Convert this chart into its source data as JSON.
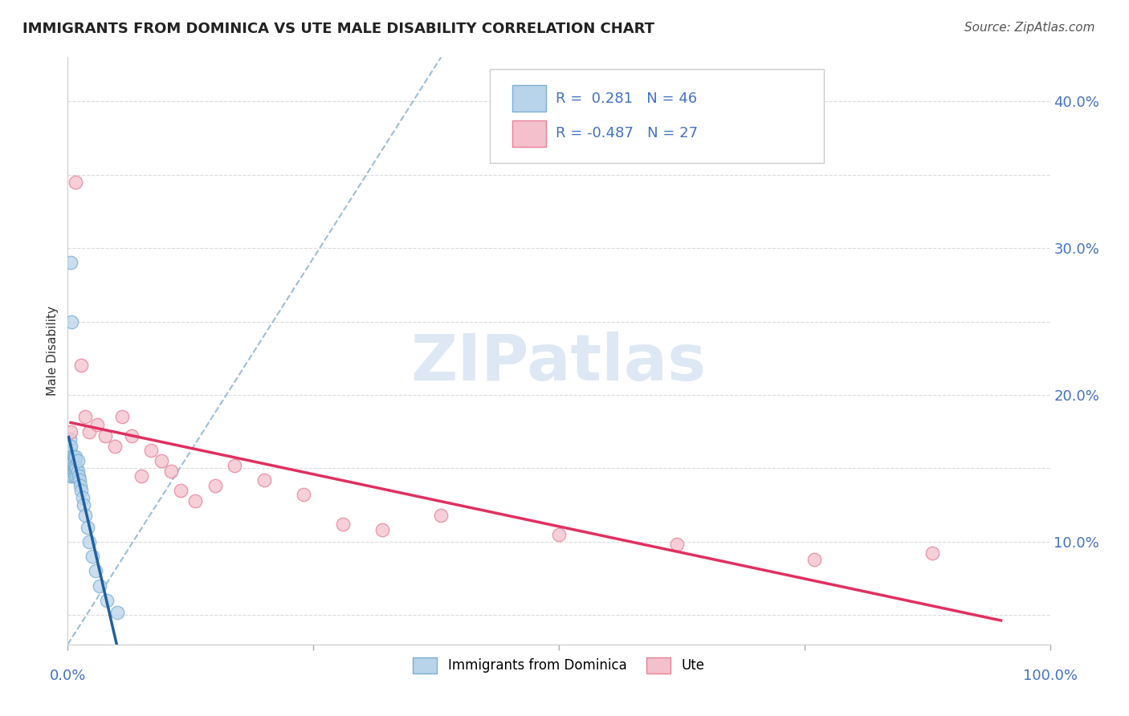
{
  "title": "IMMIGRANTS FROM DOMINICA VS UTE MALE DISABILITY CORRELATION CHART",
  "source": "Source: ZipAtlas.com",
  "ylabel": "Male Disability",
  "xmin": 0.0,
  "xmax": 1.0,
  "ymin": 0.03,
  "ymax": 0.43,
  "yticks": [
    0.1,
    0.2,
    0.3,
    0.4
  ],
  "ytick_labels": [
    "10.0%",
    "20.0%",
    "30.0%",
    "40.0%"
  ],
  "r_blue": "0.281",
  "n_blue": "46",
  "r_pink": "-0.487",
  "n_pink": "27",
  "blue_fill": "#b8d4ea",
  "blue_edge": "#7bafd4",
  "pink_fill": "#f4c0cc",
  "pink_edge": "#e88098",
  "trend_blue": "#2060a0",
  "trend_pink": "#e03060",
  "ref_line": "#90b8d8",
  "axis_color": "#4472c4",
  "grid_color": "#cccccc",
  "title_color": "#222222",
  "watermark": "ZIPatlas",
  "watermark_color": "#dde8f4",
  "blue_points_x": [
    0.001,
    0.001,
    0.001,
    0.002,
    0.002,
    0.002,
    0.002,
    0.003,
    0.003,
    0.003,
    0.003,
    0.004,
    0.004,
    0.004,
    0.005,
    0.005,
    0.005,
    0.006,
    0.006,
    0.006,
    0.007,
    0.007,
    0.007,
    0.008,
    0.008,
    0.008,
    0.009,
    0.009,
    0.01,
    0.01,
    0.011,
    0.012,
    0.013,
    0.014,
    0.015,
    0.016,
    0.018,
    0.02,
    0.022,
    0.025,
    0.028,
    0.032,
    0.04,
    0.05,
    0.003,
    0.004
  ],
  "blue_points_y": [
    0.155,
    0.16,
    0.165,
    0.15,
    0.155,
    0.16,
    0.17,
    0.145,
    0.15,
    0.155,
    0.165,
    0.148,
    0.152,
    0.158,
    0.145,
    0.15,
    0.155,
    0.148,
    0.152,
    0.158,
    0.145,
    0.15,
    0.156,
    0.148,
    0.152,
    0.158,
    0.145,
    0.15,
    0.148,
    0.155,
    0.145,
    0.142,
    0.138,
    0.135,
    0.13,
    0.125,
    0.118,
    0.11,
    0.1,
    0.09,
    0.08,
    0.07,
    0.06,
    0.052,
    0.29,
    0.25
  ],
  "pink_points_x": [
    0.003,
    0.008,
    0.014,
    0.018,
    0.022,
    0.03,
    0.038,
    0.048,
    0.055,
    0.065,
    0.075,
    0.085,
    0.095,
    0.105,
    0.115,
    0.13,
    0.15,
    0.17,
    0.2,
    0.24,
    0.28,
    0.32,
    0.38,
    0.5,
    0.62,
    0.76,
    0.88
  ],
  "pink_points_y": [
    0.175,
    0.345,
    0.22,
    0.185,
    0.175,
    0.18,
    0.172,
    0.165,
    0.185,
    0.172,
    0.145,
    0.162,
    0.155,
    0.148,
    0.135,
    0.128,
    0.138,
    0.152,
    0.142,
    0.132,
    0.112,
    0.108,
    0.118,
    0.105,
    0.098,
    0.088,
    0.092
  ]
}
